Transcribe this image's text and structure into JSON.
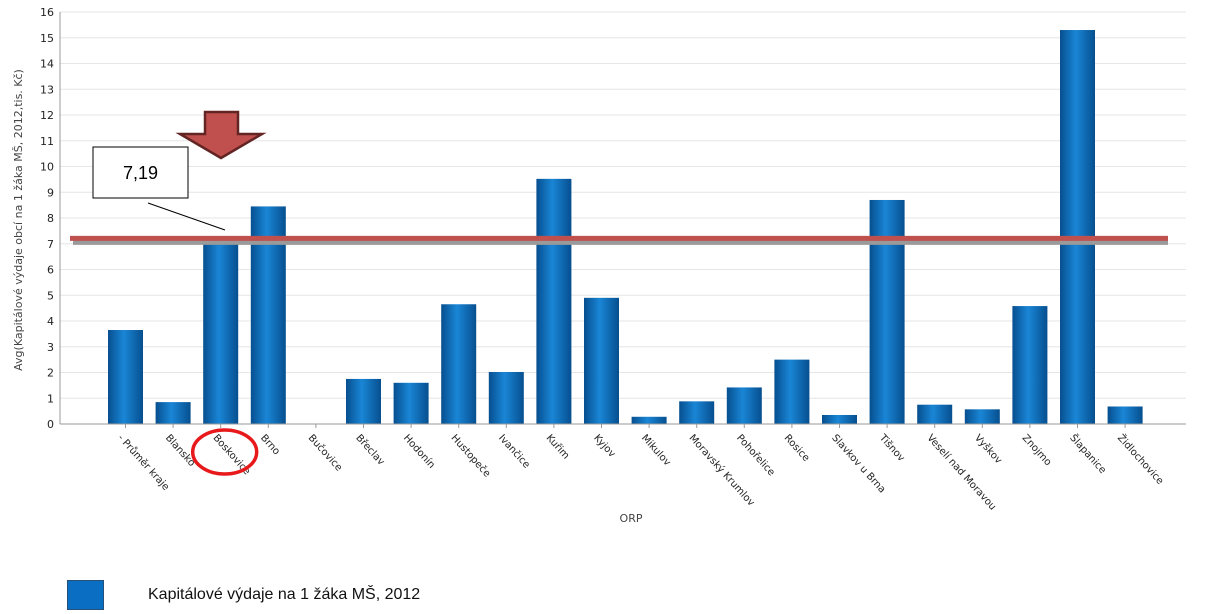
{
  "chart_data": {
    "type": "bar",
    "xlabel": "ORP",
    "ylabel": "Avg(Kapitálové výdaje obcí na 1 žáka MŠ, 2012,tis. Kč)",
    "ylim": [
      0,
      16
    ],
    "yticks": [
      0,
      1,
      2,
      3,
      4,
      5,
      6,
      7,
      8,
      9,
      10,
      11,
      12,
      13,
      14,
      15,
      16
    ],
    "grid": true,
    "categories": [
      "- Průměr kraje",
      "Blansko",
      "Boskovice",
      "Brno",
      "Bučovice",
      "Břeclav",
      "Hodonín",
      "Hustopeče",
      "Ivančice",
      "Kuřim",
      "Kyjov",
      "Mikulov",
      "Moravský Krumlov",
      "Pohořelice",
      "Rosice",
      "Slavkov u Brna",
      "Tišnov",
      "Veselí nad Moravou",
      "Vyškov",
      "Znojmo",
      "Šlapanice",
      "Židlochovice"
    ],
    "series": [
      {
        "name": "Kapitálové výdaje na 1 žáka MŠ, 2012",
        "values": [
          3.65,
          0.85,
          7.2,
          8.45,
          0,
          1.75,
          1.6,
          4.65,
          2.02,
          9.52,
          4.9,
          0.28,
          0.88,
          1.42,
          2.5,
          0.35,
          8.7,
          0.75,
          0.57,
          4.58,
          15.3,
          0.68
        ]
      }
    ],
    "annotations": {
      "reference_line": {
        "value": 7.19,
        "label": "7,19"
      },
      "highlighted_category": "Boskovice"
    },
    "legend_position": "bottom-left"
  },
  "colors": {
    "bar": "#0a6fc2",
    "bar_dark": "#064f8f",
    "reference_line": "#c0504d",
    "arrow": "#c0504d",
    "arrow_border": "#632523",
    "circle": "#e8191a",
    "grid": "#e6e6e6"
  },
  "legend": {
    "label": "Kapitálové výdaje na 1 žáka MŠ, 2012"
  }
}
